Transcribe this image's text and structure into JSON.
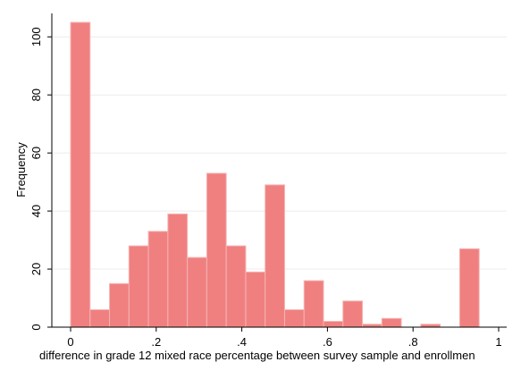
{
  "chart_data": {
    "type": "bar",
    "bin_width": 0.04545,
    "bins_start": 0,
    "values": [
      105,
      6,
      15,
      28,
      33,
      39,
      24,
      53,
      28,
      19,
      49,
      6,
      16,
      2,
      9,
      1,
      3,
      0,
      1,
      0,
      27
    ],
    "xlabel": "difference in grade 12 mixed race percentage between survey sample and enrollmen",
    "ylabel": "Frequency",
    "xlim": [
      0,
      1
    ],
    "ylim": [
      0,
      105
    ],
    "x_ticks": [
      0,
      0.2,
      0.4,
      0.6,
      0.8,
      1
    ],
    "x_tick_labels": [
      "0",
      ".2",
      ".4",
      ".6",
      ".8",
      "1"
    ],
    "y_ticks": [
      0,
      20,
      40,
      60,
      80,
      100
    ],
    "y_tick_labels": [
      "0",
      "20",
      "40",
      "60",
      "80",
      "100"
    ],
    "grid": true,
    "bar_color": "#f08080",
    "bar_edge_color": "#f6b3b3"
  }
}
